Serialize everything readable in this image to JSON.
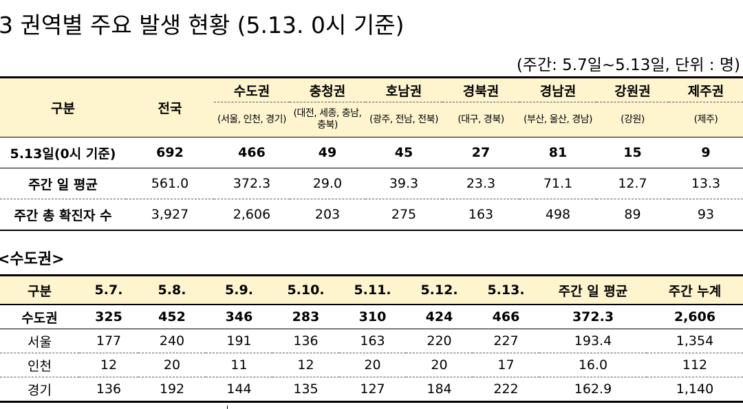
{
  "title": "3  권역별 주요 발생 현황 (5.13. 0시 기준)",
  "unit_note": "(주간: 5.7일~5.13일, 단위 : 명)",
  "table1": {
    "header_label": "구분",
    "header_total": "전국",
    "regions": [
      {
        "name": "수도권",
        "sub": "(서울, 인천, 경기)"
      },
      {
        "name": "충청권",
        "sub": "(대전, 세종, 충남, 충북)"
      },
      {
        "name": "호남권",
        "sub": "(광주, 전남, 전북)"
      },
      {
        "name": "경북권",
        "sub": "(대구, 경북)"
      },
      {
        "name": "경남권",
        "sub": "(부산, 울산, 경남)"
      },
      {
        "name": "강원권",
        "sub": "(강원)"
      },
      {
        "name": "제주권",
        "sub": "(제주)"
      }
    ],
    "rows": [
      {
        "label": "5.13일(0시 기준)",
        "values": [
          "692",
          "466",
          "49",
          "45",
          "27",
          "81",
          "15",
          "9"
        ]
      },
      {
        "label": "주간 일 평균",
        "values": [
          "561.0",
          "372.3",
          "29.0",
          "39.3",
          "23.3",
          "71.1",
          "12.7",
          "13.3"
        ]
      },
      {
        "label": "주간 총 확진자 수",
        "values": [
          "3,927",
          "2,606",
          "203",
          "275",
          "163",
          "498",
          "89",
          "93"
        ]
      }
    ]
  },
  "subheading": "<수도권>",
  "table2": {
    "headers": [
      "구분",
      "5.7.",
      "5.8.",
      "5.9.",
      "5.10.",
      "5.11.",
      "5.12.",
      "5.13.",
      "주간 일 평균",
      "주간 누계"
    ],
    "rows": [
      [
        "수도권",
        "325",
        "452",
        "346",
        "283",
        "310",
        "424",
        "466",
        "372.3",
        "2,606"
      ],
      [
        "서울",
        "177",
        "240",
        "191",
        "136",
        "163",
        "220",
        "227",
        "193.4",
        "1,354"
      ],
      [
        "인천",
        "12",
        "20",
        "11",
        "12",
        "20",
        "20",
        "17",
        "16.0",
        "112"
      ],
      [
        "경기",
        "136",
        "192",
        "144",
        "135",
        "127",
        "184",
        "222",
        "162.9",
        "1,140"
      ]
    ]
  }
}
